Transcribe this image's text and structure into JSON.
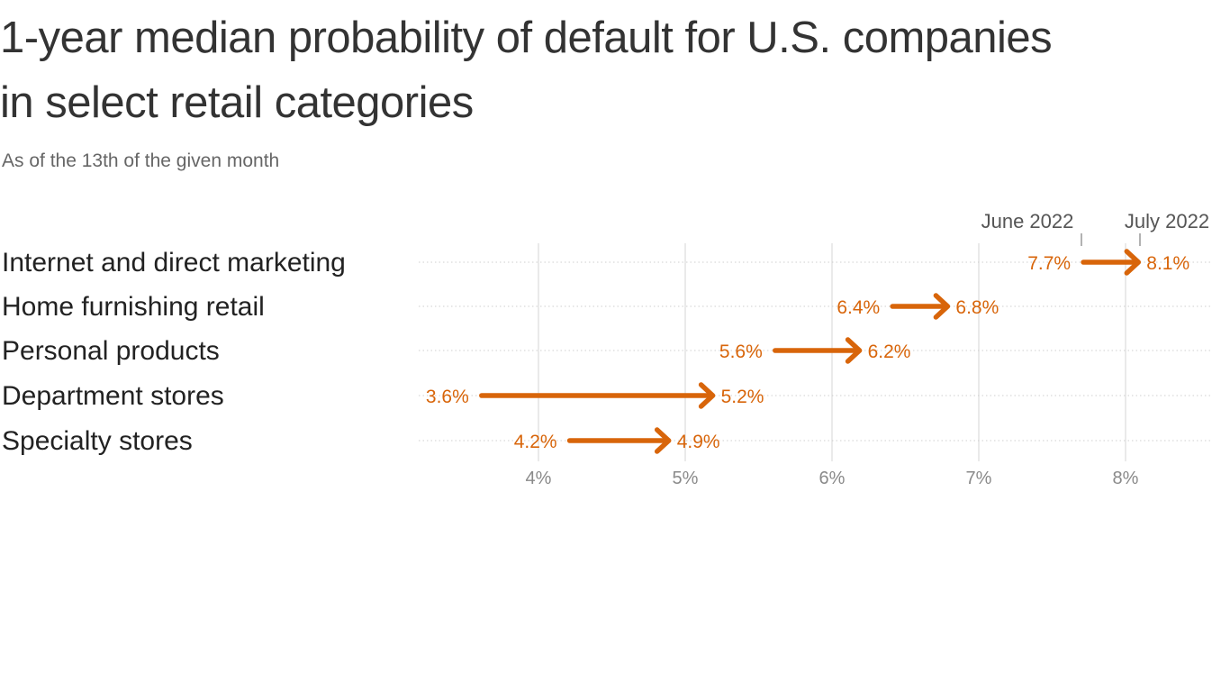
{
  "header": {
    "title": "1-year median probability of default for U.S. companies in select retail categories",
    "subtitle": "As of the 13th of the given month"
  },
  "legend": {
    "start_label": "June 2022",
    "end_label": "July 2022"
  },
  "colors": {
    "arrow": "#d8650a",
    "text": "#333333",
    "grid": "#e3e3e3",
    "tick": "#8a8a8a"
  },
  "chart_data": {
    "type": "arrow-dot",
    "title": "1-year median probability of default for U.S. companies in select retail categories",
    "subtitle": "As of the 13th of the given month",
    "xlabel": "",
    "ylabel": "",
    "xlim": [
      3.2,
      8.6
    ],
    "x_ticks": [
      "4%",
      "5%",
      "6%",
      "7%",
      "8%"
    ],
    "x_tick_values": [
      4,
      5,
      6,
      7,
      8
    ],
    "grid": true,
    "legend": [
      "June 2022",
      "July 2022"
    ],
    "legend_position": "top-right",
    "categories": [
      "Internet and direct marketing",
      "Home furnishing retail",
      "Personal products",
      "Department stores",
      "Specialty stores"
    ],
    "series": [
      {
        "name": "June 2022",
        "values": [
          7.7,
          6.4,
          5.6,
          3.6,
          4.2
        ]
      },
      {
        "name": "July 2022",
        "values": [
          8.1,
          6.8,
          6.2,
          5.2,
          4.9
        ]
      }
    ],
    "value_labels": {
      "June 2022": [
        "7.7%",
        "6.4%",
        "5.6%",
        "3.6%",
        "4.2%"
      ],
      "July 2022": [
        "8.1%",
        "6.8%",
        "6.2%",
        "5.2%",
        "4.9%"
      ]
    }
  }
}
